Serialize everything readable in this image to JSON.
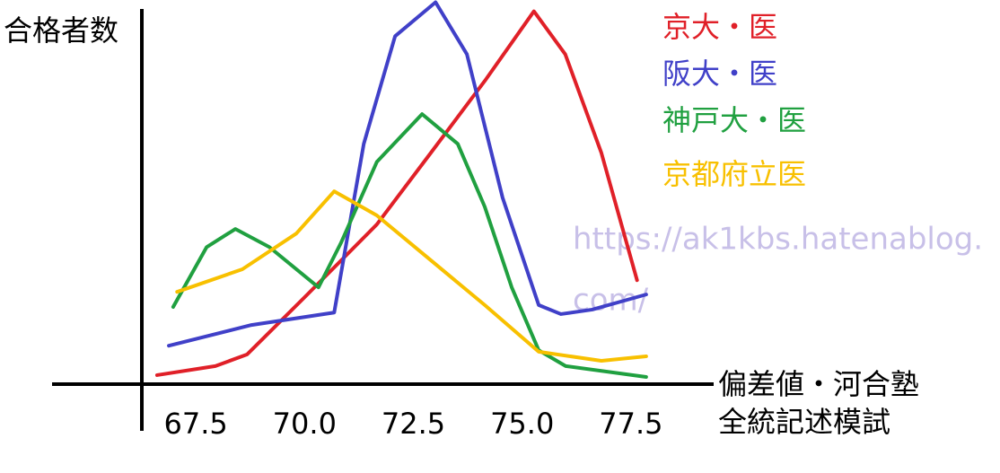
{
  "chart_data": {
    "type": "line",
    "y_label": "合格者数",
    "x_label": [
      "偏差値・河合塾",
      "全統記述模試"
    ],
    "annotations": [
      "https://ak1kbs.hatenablog.",
      "com/"
    ],
    "xlim": [
      66.26,
      79.4
    ],
    "ylim": [
      0,
      102
    ],
    "xticks": [
      67.5,
      {
        "value": 70,
        "label": "70.0"
      },
      72.5,
      {
        "value": 75,
        "label": "75.0"
      },
      77.5
    ],
    "legend": "top-right",
    "series": [
      {
        "name": "京大・医",
        "color": "#e02028",
        "x": [
          66.61,
          67.95,
          68.68,
          70.02,
          71.66,
          72.9,
          74.14,
          75.27,
          75.99,
          76.82,
          77.64
        ],
        "values": [
          2.4,
          4.8,
          7.9,
          23.3,
          42.4,
          61.4,
          80.5,
          99.0,
          87.6,
          61.4,
          27.6
        ]
      },
      {
        "name": "阪大・医",
        "color": "#4040c8",
        "x": [
          66.88,
          68.78,
          70.68,
          71.36,
          72.08,
          73.01,
          73.73,
          74.55,
          75.38,
          75.89,
          76.61,
          77.85
        ],
        "values": [
          10.2,
          15.7,
          19.0,
          63.8,
          92.4,
          101.4,
          87.6,
          49.5,
          21.0,
          18.6,
          19.8,
          23.8
        ]
      },
      {
        "name": "神戸大・医",
        "color": "#20a040",
        "x": [
          66.98,
          67.75,
          68.41,
          69.19,
          70.32,
          70.84,
          71.66,
          72.7,
          73.52,
          74.14,
          74.76,
          75.38,
          76.0,
          77.85
        ],
        "values": [
          20.5,
          36.4,
          41.2,
          36.4,
          25.7,
          37.6,
          59.0,
          71.7,
          63.8,
          47.1,
          25.7,
          9.0,
          4.8,
          1.9
        ]
      },
      {
        "name": "京都府立医",
        "color": "#f8c000",
        "x": [
          67.07,
          68.57,
          69.81,
          70.68,
          71.66,
          72.9,
          74.14,
          75.38,
          76.82,
          77.85
        ],
        "values": [
          24.5,
          30.5,
          40.0,
          51.2,
          44.8,
          32.9,
          21.0,
          8.6,
          6.2,
          7.4
        ]
      }
    ]
  }
}
